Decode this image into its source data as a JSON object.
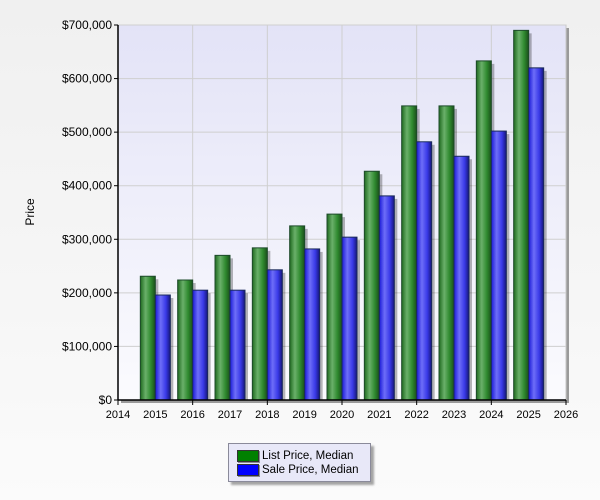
{
  "chart_data": {
    "type": "bar",
    "title": "",
    "xlabel": "",
    "ylabel": "Price",
    "ylim": [
      0,
      700000
    ],
    "xlim": [
      2014,
      2026
    ],
    "y_ticks": [
      "$0",
      "$100,000",
      "$200,000",
      "$300,000",
      "$400,000",
      "$500,000",
      "$600,000",
      "$700,000"
    ],
    "x_ticks": [
      "2014",
      "2015",
      "2016",
      "2017",
      "2018",
      "2019",
      "2020",
      "2021",
      "2022",
      "2023",
      "2024",
      "2025",
      "2026"
    ],
    "categories": [
      "2015",
      "2016",
      "2017",
      "2018",
      "2019",
      "2020",
      "2021",
      "2022",
      "2023",
      "2024",
      "2025"
    ],
    "series": [
      {
        "name": "List Price, Median",
        "color": "#008000",
        "values": [
          231000,
          224000,
          270000,
          284000,
          325000,
          347000,
          427000,
          549000,
          549000,
          633000,
          690000
        ]
      },
      {
        "name": "Sale Price, Median",
        "color": "#0000ff",
        "values": [
          196000,
          205000,
          205000,
          243000,
          282000,
          304000,
          381000,
          482000,
          455000,
          502000,
          620000
        ]
      }
    ],
    "grid": true,
    "legend_position": "bottom"
  },
  "legend": {
    "items": [
      {
        "label": "List Price, Median",
        "color": "#008000"
      },
      {
        "label": "Sale Price, Median",
        "color": "#0000ff"
      }
    ]
  }
}
